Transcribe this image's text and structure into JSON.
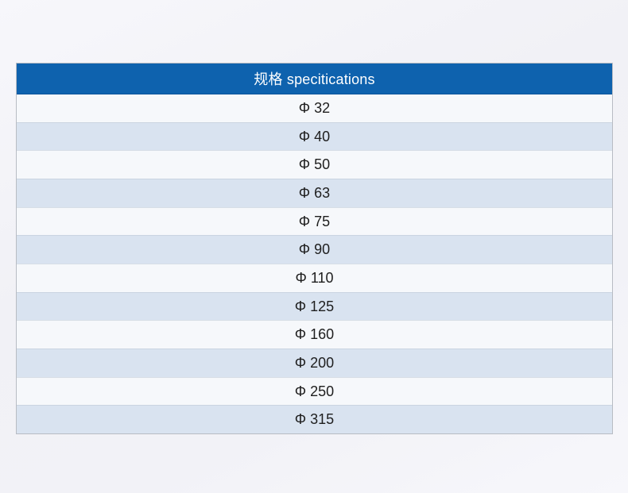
{
  "table": {
    "header": "规格 specitications",
    "rows": [
      "Φ 32",
      "Φ 40",
      "Φ 50",
      "Φ 63",
      "Φ 75",
      "Φ 90",
      "Φ 110",
      "Φ 125",
      "Φ 160",
      "Φ 200",
      "Φ 250",
      "Φ 315"
    ]
  },
  "colors": {
    "header_bg": "#0e62ae",
    "header_text": "#ffffff",
    "row_bg": "#f6f8fb",
    "row_alt_bg": "#d9e3f0",
    "row_text": "#1e1e1e",
    "border": "#b8bcc3"
  }
}
